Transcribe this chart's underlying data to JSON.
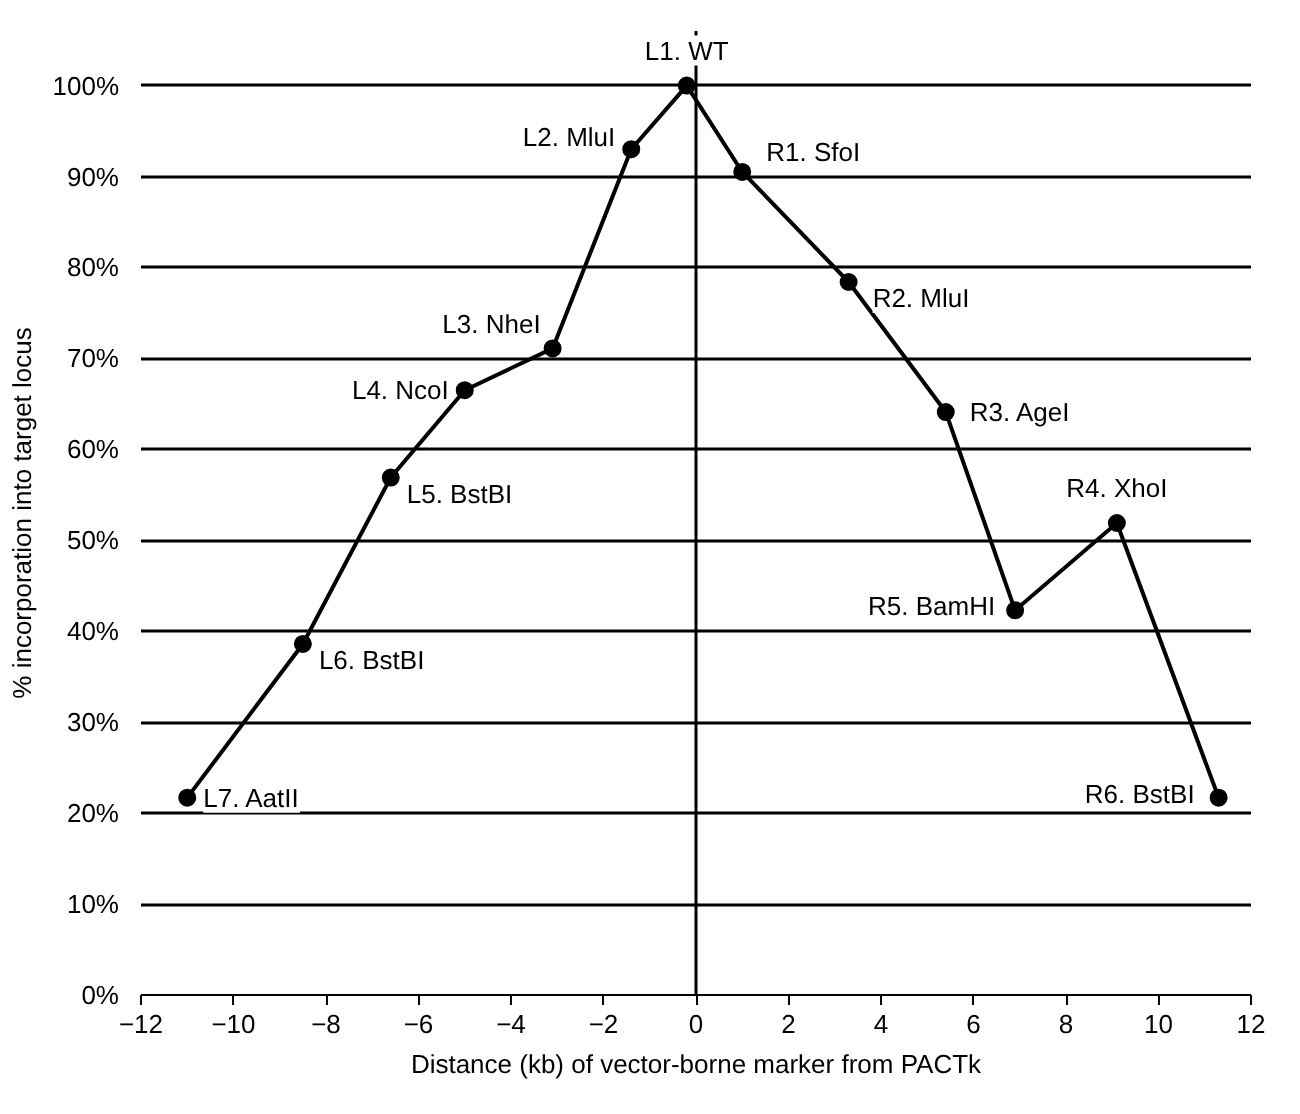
{
  "chart_data": {
    "type": "line",
    "xlabel": "Distance (kb) of vector-borne marker from PACTk",
    "ylabel": "% incorporation into target locus",
    "x": [
      -11.0,
      -8.5,
      -6.6,
      -5.0,
      -3.1,
      -1.4,
      -0.2,
      1.0,
      3.3,
      5.4,
      6.9,
      9.1,
      11.3
    ],
    "series": [
      {
        "color": "#000000",
        "values": [
          21.7,
          38.6,
          56.9,
          66.5,
          71.1,
          93.0,
          100,
          90.5,
          78.4,
          64.1,
          42.3,
          51.9,
          21.7
        ]
      }
    ],
    "xlim": [
      -12,
      12
    ],
    "xticks": [
      -12,
      -10,
      -8,
      -6,
      -4,
      -2,
      0,
      2,
      4,
      6,
      8,
      10,
      12
    ],
    "ylim": [
      0,
      106
    ],
    "yticks": [
      {
        "value": 0,
        "label": "0%"
      },
      {
        "value": 10,
        "label": "10%"
      },
      {
        "value": 20,
        "label": "20%"
      },
      {
        "value": 30,
        "label": "30%"
      },
      {
        "value": 40,
        "label": "40%"
      },
      {
        "value": 50,
        "label": "50%"
      },
      {
        "value": 60,
        "label": "60%"
      },
      {
        "value": 70,
        "label": "70%"
      },
      {
        "value": 80,
        "label": "80%"
      },
      {
        "value": 90,
        "label": "90%"
      },
      {
        "value": 100,
        "label": "100%"
      }
    ],
    "grid": "y",
    "marker": "circle",
    "line_style": "solid",
    "ref_lines": [
      {
        "axis": "x",
        "value": 0,
        "color": "#000000"
      }
    ],
    "annotations": [
      {
        "text": "L7. AatII",
        "x": -11.0,
        "y": 21.7
      },
      {
        "text": "L6. BstBI",
        "x": -8.5,
        "y": 38.6
      },
      {
        "text": "L5. BstBI",
        "x": -6.6,
        "y": 56.9
      },
      {
        "text": "L4. NcoI",
        "x": -5.0,
        "y": 66.5
      },
      {
        "text": "L3. NheI",
        "x": -3.1,
        "y": 71.1
      },
      {
        "text": "L2. MluI",
        "x": -1.4,
        "y": 93.0
      },
      {
        "text": "L1. WT",
        "x": -0.2,
        "y": 100
      },
      {
        "text": "R1. SfoI",
        "x": 1.0,
        "y": 90.5
      },
      {
        "text": "R2. MluI",
        "x": 3.3,
        "y": 78.4
      },
      {
        "text": "R3. AgeI",
        "x": 5.4,
        "y": 64.1
      },
      {
        "text": "R5. BamHI",
        "x": 6.9,
        "y": 42.3
      },
      {
        "text": "R4. XhoI",
        "x": 9.1,
        "y": 51.9
      },
      {
        "text": "R6. BstBI",
        "x": 11.3,
        "y": 21.7
      }
    ]
  }
}
